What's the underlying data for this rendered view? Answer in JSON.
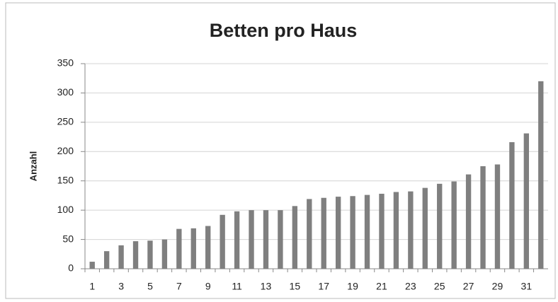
{
  "chart_data": {
    "type": "bar",
    "title": "Betten pro Haus",
    "y_label": "Anzahl",
    "categories": [
      "1",
      null,
      "3",
      null,
      "5",
      null,
      "7",
      null,
      "9",
      null,
      "11",
      null,
      "13",
      null,
      "15",
      null,
      "17",
      null,
      "19",
      null,
      "21",
      null,
      "23",
      null,
      "25",
      null,
      "27",
      null,
      "29",
      null,
      "31",
      null
    ],
    "values": [
      12,
      30,
      40,
      47,
      48,
      50,
      68,
      69,
      73,
      92,
      98,
      100,
      100,
      100,
      107,
      119,
      121,
      123,
      124,
      126,
      128,
      131,
      132,
      138,
      145,
      149,
      161,
      175,
      178,
      216,
      231,
      320
    ],
    "color": "#7f7f7f",
    "ylim": [
      0,
      350
    ],
    "yticks": [
      0,
      50,
      100,
      150,
      200,
      250,
      300,
      350
    ],
    "grid": true
  }
}
